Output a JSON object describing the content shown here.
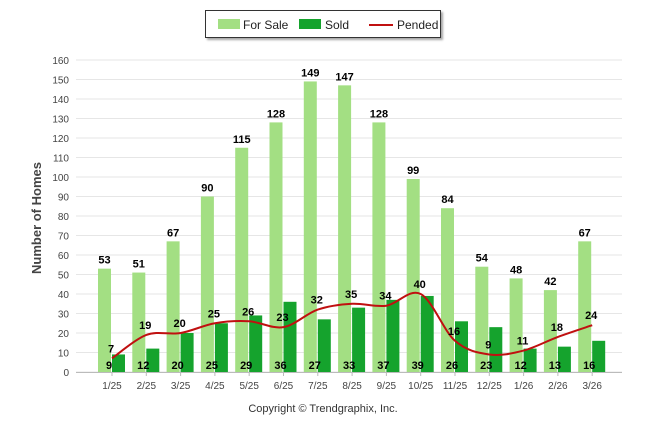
{
  "copyright": "Copyright © Trendgraphix, Inc.",
  "colors": {
    "for_sale": "#a3df83",
    "sold": "#15a32d",
    "pended": "#c01010"
  },
  "chart_data": {
    "type": "bar",
    "title": "",
    "xlabel": "",
    "ylabel": "Number of Homes",
    "ylim": [
      0,
      160
    ],
    "yticks": [
      0,
      10,
      20,
      30,
      40,
      50,
      60,
      70,
      80,
      90,
      100,
      110,
      120,
      130,
      140,
      150,
      160
    ],
    "categories": [
      "1/25",
      "2/25",
      "3/25",
      "4/25",
      "5/25",
      "6/25",
      "7/25",
      "8/25",
      "9/25",
      "10/25",
      "11/25",
      "12/25",
      "1/26",
      "2/26",
      "3/26"
    ],
    "legend_position": "top-center",
    "series": [
      {
        "name": "For Sale",
        "kind": "bar",
        "values": [
          53,
          51,
          67,
          90,
          115,
          128,
          149,
          147,
          128,
          99,
          84,
          54,
          48,
          42,
          67
        ]
      },
      {
        "name": "Sold",
        "kind": "bar",
        "values": [
          9,
          12,
          20,
          25,
          29,
          36,
          27,
          33,
          37,
          39,
          26,
          23,
          12,
          13,
          16
        ]
      },
      {
        "name": "Pended",
        "kind": "line",
        "values": [
          7,
          19,
          20,
          25,
          26,
          23,
          32,
          35,
          34,
          40,
          16,
          9,
          11,
          18,
          24
        ]
      }
    ]
  }
}
